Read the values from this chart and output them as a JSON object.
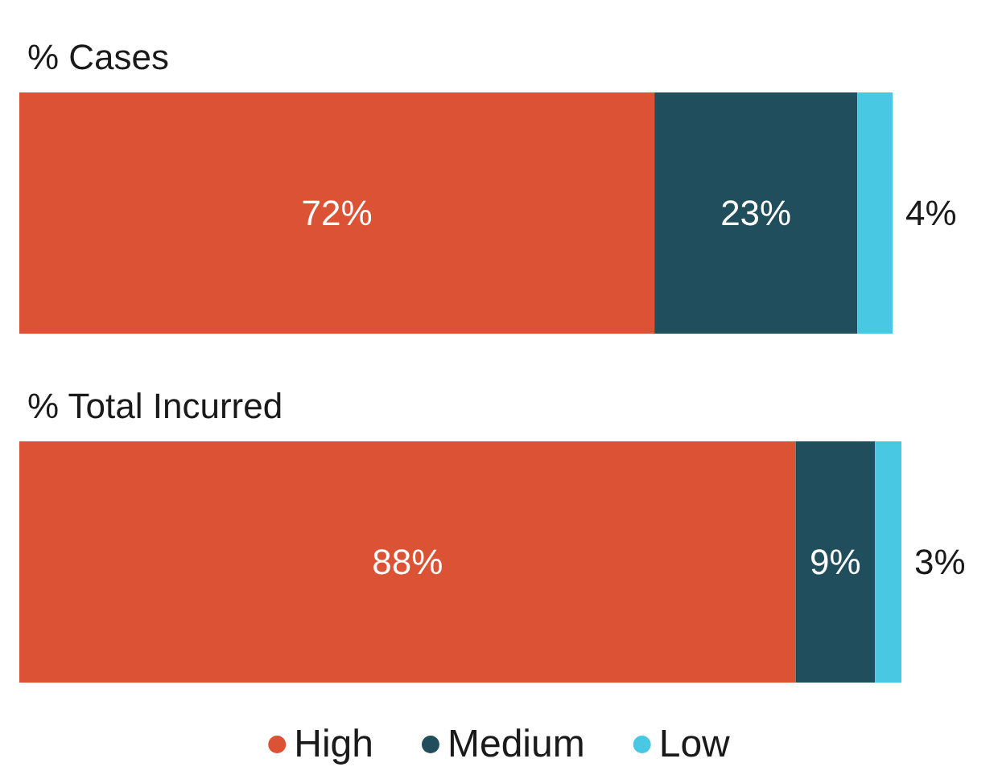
{
  "chart_data": {
    "type": "bar",
    "orientation": "horizontal",
    "stacked": true,
    "categories": [
      "% Cases",
      "% Total Incurred"
    ],
    "series": [
      {
        "name": "High",
        "color": "#dc5234",
        "values": [
          72,
          88
        ],
        "value_labels": [
          "72%",
          "88%"
        ]
      },
      {
        "name": "Medium",
        "color": "#214e5c",
        "values": [
          23,
          9
        ],
        "value_labels": [
          "23%",
          "9%"
        ]
      },
      {
        "name": "Low",
        "color": "#48c8e2",
        "values": [
          4,
          3
        ],
        "value_labels": [
          "4%",
          "3%"
        ]
      }
    ],
    "xlim": [
      0,
      100
    ],
    "legend": "bottom",
    "marker": "circle"
  }
}
